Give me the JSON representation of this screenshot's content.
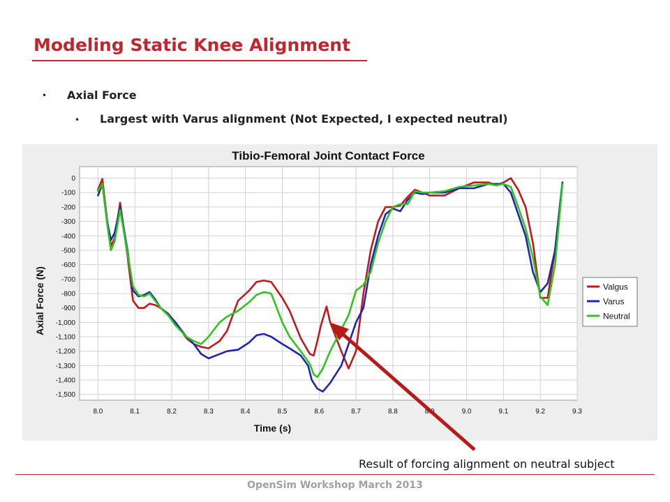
{
  "slide": {
    "title": "Modeling Static Knee Alignment",
    "bullet1": "Axial Force",
    "bullet2": "Largest with Varus alignment (Not Expected, I expected neutral)",
    "annotation": "Result of forcing alignment on neutral subject",
    "footer": "OpenSim Workshop March 2013",
    "accent_color": "#c0262c"
  },
  "chart_data": {
    "type": "line",
    "title": "Tibio-Femoral Joint Contact Force",
    "xlabel": "Time (s)",
    "ylabel": "Axial Force (N)",
    "xlim": [
      7.95,
      9.3
    ],
    "ylim": [
      -1540,
      80
    ],
    "xticks": [
      8.0,
      8.1,
      8.2,
      8.3,
      8.4,
      8.5,
      8.6,
      8.7,
      8.8,
      8.9,
      9.0,
      9.1,
      9.2,
      9.3
    ],
    "xtick_labels": [
      "8.0",
      "8.1",
      "8.2",
      "8.3",
      "8.4",
      "8.5",
      "8.6",
      "8.7",
      "8.8",
      "8.9",
      "9.0",
      "9.1",
      "9.2",
      "9.3"
    ],
    "yticks": [
      0,
      -100,
      -200,
      -300,
      -400,
      -500,
      -600,
      -700,
      -800,
      -900,
      -1000,
      -1100,
      -1200,
      -1300,
      -1400,
      -1500
    ],
    "ytick_labels": [
      "0",
      "-100",
      "-200",
      "-300",
      "-400",
      "-500",
      "-600",
      "-700",
      "-800",
      "-900",
      "-1,000",
      "-1,100",
      "-1,200",
      "-1,300",
      "-1,400",
      "-1,500"
    ],
    "grid": true,
    "legend_position": "right",
    "series": [
      {
        "name": "Valgus",
        "color": "#c0191c",
        "x": [
          8.0,
          8.012,
          8.025,
          8.035,
          8.045,
          8.06,
          8.08,
          8.095,
          8.11,
          8.125,
          8.14,
          8.155,
          8.17,
          8.19,
          8.21,
          8.24,
          8.26,
          8.28,
          8.3,
          8.33,
          8.35,
          8.38,
          8.41,
          8.43,
          8.45,
          8.47,
          8.5,
          8.52,
          8.55,
          8.575,
          8.585,
          8.595,
          8.605,
          8.62,
          8.63,
          8.645,
          8.66,
          8.68,
          8.7,
          8.72,
          8.74,
          8.76,
          8.78,
          8.8,
          8.82,
          8.84,
          8.86,
          8.88,
          8.9,
          8.94,
          8.98,
          9.02,
          9.06,
          9.08,
          9.1,
          9.12,
          9.14,
          9.16,
          9.18,
          9.2,
          9.22,
          9.24,
          9.26
        ],
        "y": [
          -80,
          -5,
          -300,
          -470,
          -420,
          -170,
          -540,
          -850,
          -900,
          -900,
          -870,
          -880,
          -900,
          -950,
          -1000,
          -1110,
          -1150,
          -1170,
          -1180,
          -1130,
          -1060,
          -850,
          -780,
          -720,
          -710,
          -720,
          -830,
          -920,
          -1110,
          -1220,
          -1230,
          -1130,
          -1020,
          -890,
          -1000,
          -1100,
          -1200,
          -1320,
          -1200,
          -800,
          -500,
          -300,
          -200,
          -200,
          -190,
          -130,
          -80,
          -100,
          -120,
          -120,
          -70,
          -30,
          -30,
          -50,
          -30,
          0,
          -80,
          -200,
          -450,
          -830,
          -830,
          -500,
          -30
        ]
      },
      {
        "name": "Varus",
        "color": "#1f24b4",
        "x": [
          8.0,
          8.012,
          8.025,
          8.035,
          8.045,
          8.06,
          8.08,
          8.095,
          8.11,
          8.125,
          8.14,
          8.155,
          8.17,
          8.19,
          8.21,
          8.24,
          8.26,
          8.28,
          8.3,
          8.33,
          8.35,
          8.38,
          8.41,
          8.43,
          8.45,
          8.47,
          8.5,
          8.52,
          8.55,
          8.57,
          8.58,
          8.595,
          8.61,
          8.63,
          8.66,
          8.68,
          8.7,
          8.72,
          8.74,
          8.76,
          8.78,
          8.8,
          8.82,
          8.84,
          8.86,
          8.88,
          8.9,
          8.94,
          8.98,
          9.02,
          9.06,
          9.08,
          9.1,
          9.12,
          9.14,
          9.16,
          9.18,
          9.2,
          9.22,
          9.24,
          9.26
        ],
        "y": [
          -120,
          -40,
          -300,
          -430,
          -380,
          -200,
          -500,
          -780,
          -820,
          -810,
          -790,
          -840,
          -900,
          -940,
          -1000,
          -1100,
          -1150,
          -1220,
          -1250,
          -1220,
          -1200,
          -1190,
          -1140,
          -1090,
          -1080,
          -1100,
          -1150,
          -1180,
          -1230,
          -1300,
          -1400,
          -1460,
          -1480,
          -1420,
          -1300,
          -1150,
          -1000,
          -900,
          -600,
          -400,
          -250,
          -210,
          -230,
          -150,
          -100,
          -110,
          -100,
          -100,
          -70,
          -70,
          -40,
          -40,
          -40,
          -100,
          -250,
          -400,
          -650,
          -790,
          -730,
          -500,
          -30
        ]
      },
      {
        "name": "Neutral",
        "color": "#2ec51c",
        "x": [
          8.0,
          8.012,
          8.025,
          8.035,
          8.045,
          8.06,
          8.08,
          8.095,
          8.11,
          8.125,
          8.14,
          8.155,
          8.17,
          8.19,
          8.21,
          8.24,
          8.26,
          8.28,
          8.3,
          8.33,
          8.35,
          8.38,
          8.41,
          8.43,
          8.45,
          8.47,
          8.5,
          8.52,
          8.55,
          8.575,
          8.585,
          8.595,
          8.61,
          8.63,
          8.66,
          8.68,
          8.7,
          8.72,
          8.74,
          8.76,
          8.78,
          8.8,
          8.82,
          8.84,
          8.86,
          8.88,
          8.9,
          8.94,
          8.98,
          9.02,
          9.06,
          9.08,
          9.1,
          9.12,
          9.14,
          9.16,
          9.18,
          9.2,
          9.22,
          9.24,
          9.26
        ],
        "y": [
          -90,
          -40,
          -320,
          -500,
          -440,
          -220,
          -520,
          -750,
          -810,
          -820,
          -800,
          -850,
          -900,
          -950,
          -1020,
          -1100,
          -1130,
          -1150,
          -1100,
          -1000,
          -960,
          -920,
          -860,
          -810,
          -790,
          -800,
          -1000,
          -1100,
          -1200,
          -1290,
          -1360,
          -1380,
          -1320,
          -1200,
          -1050,
          -950,
          -780,
          -740,
          -650,
          -450,
          -300,
          -200,
          -180,
          -180,
          -90,
          -100,
          -100,
          -90,
          -60,
          -50,
          -40,
          -50,
          -40,
          -60,
          -200,
          -350,
          -550,
          -820,
          -880,
          -600,
          -40
        ]
      }
    ]
  }
}
